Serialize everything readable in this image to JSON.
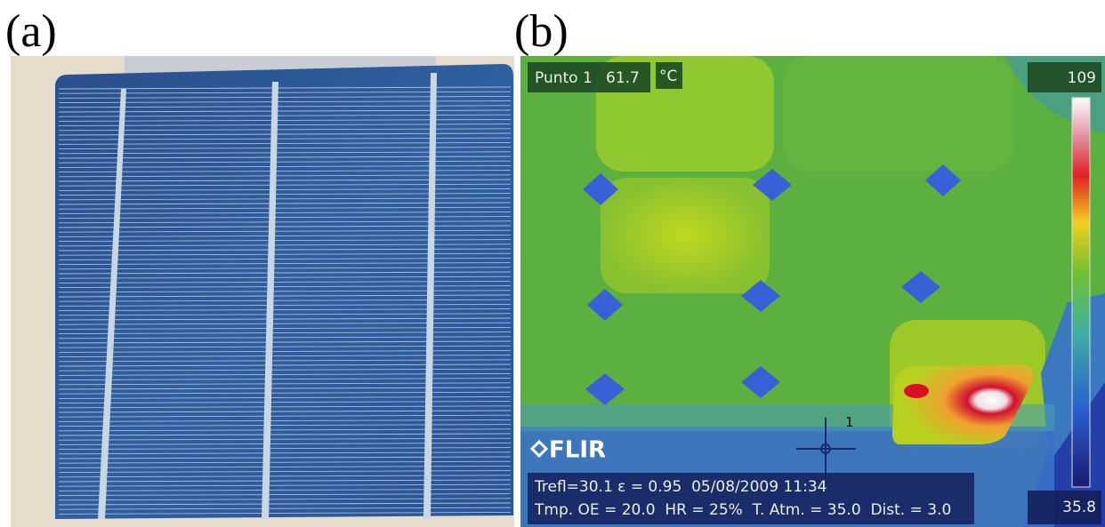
{
  "panels": [
    {
      "label": "(a)"
    },
    {
      "label": "(b)",
      "spot": {
        "name": "Punto 1",
        "value": "61.7",
        "unit": "°C"
      },
      "scale": {
        "max": "109",
        "min": "35.8"
      },
      "logo": "FLIR",
      "marker": "1",
      "info": [
        "Trefl=30.1 ε = 0.95  05/08/2009 11:34",
        "Tmp. OE = 20.0  HR = 25%  T. Atm. = 35.0  Dist. = 3.0"
      ]
    }
  ]
}
